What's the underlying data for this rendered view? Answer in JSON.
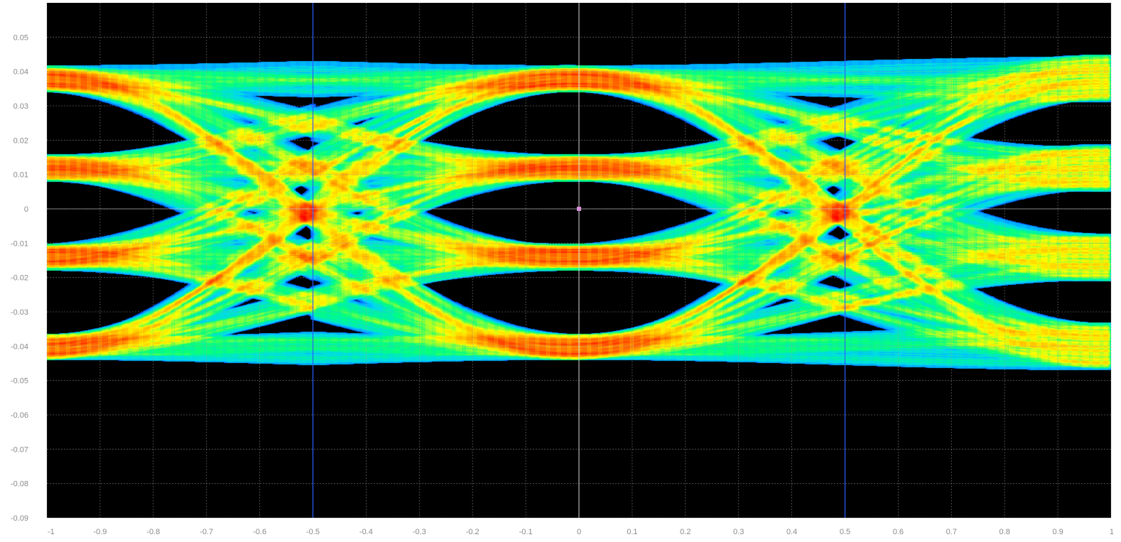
{
  "chart_data": {
    "type": "heatmap",
    "subtype": "eye-diagram (PAM4 persistence density)",
    "title": "",
    "xlabel": "",
    "ylabel": "",
    "xlim": [
      -1,
      1
    ],
    "ylim": [
      -0.09,
      0.06
    ],
    "x_ticks": [
      -1,
      -0.9,
      -0.8,
      -0.7,
      -0.6,
      -0.5,
      -0.4,
      -0.3,
      -0.2,
      -0.1,
      0,
      0.1,
      0.2,
      0.3,
      0.4,
      0.5,
      0.6,
      0.7,
      0.8,
      0.9,
      1
    ],
    "x_tick_labels": [
      "-1",
      "-0.9",
      "-0.8",
      "-0.7",
      "-0.6",
      "-0.5",
      "-0.4",
      "-0.3",
      "-0.2",
      "-0.1",
      "0",
      "0.1",
      "0.2",
      "0.3",
      "0.4",
      "0.5",
      "0.6",
      "0.7",
      "0.8",
      "0.9",
      "1"
    ],
    "y_ticks": [
      0.05,
      0.04,
      0.03,
      0.02,
      0.01,
      0,
      -0.01,
      -0.02,
      -0.03,
      -0.04,
      -0.05,
      -0.06,
      -0.07,
      -0.08,
      -0.09
    ],
    "y_tick_labels": [
      "0.05",
      "0.04",
      "0.03",
      "0.02",
      "0.01",
      "0",
      "-0.01",
      "-0.02",
      "-0.03",
      "-0.04",
      "-0.05",
      "-0.06",
      "-0.07",
      "-0.08",
      "-0.09"
    ],
    "signal_levels": [
      0.038,
      0.012,
      -0.014,
      -0.04
    ],
    "crossing_times": [
      -1,
      0,
      1
    ],
    "segment_boundaries": [
      -0.5,
      0.5
    ],
    "cursor_x": 0,
    "cursor_y": 0,
    "grid": true,
    "colormap": [
      "#000000",
      "#0016b4",
      "#0050ff",
      "#00d2ff",
      "#00ff80",
      "#ffff00",
      "#ff9600",
      "#ff0000"
    ],
    "background": "#000000",
    "grid_color": "#9a9a9a"
  }
}
